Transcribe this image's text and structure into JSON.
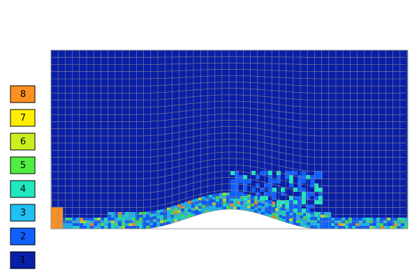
{
  "legend": {
    "items": [
      {
        "label": "8",
        "color": "#ff9020"
      },
      {
        "label": "7",
        "color": "#ffee00"
      },
      {
        "label": "6",
        "color": "#c8f020"
      },
      {
        "label": "5",
        "color": "#50ee40"
      },
      {
        "label": "4",
        "color": "#20e8c0"
      },
      {
        "label": "3",
        "color": "#20c0f0"
      },
      {
        "label": "2",
        "color": "#1060ff"
      },
      {
        "label": "1",
        "color": "#0a1fa8"
      }
    ]
  }
}
